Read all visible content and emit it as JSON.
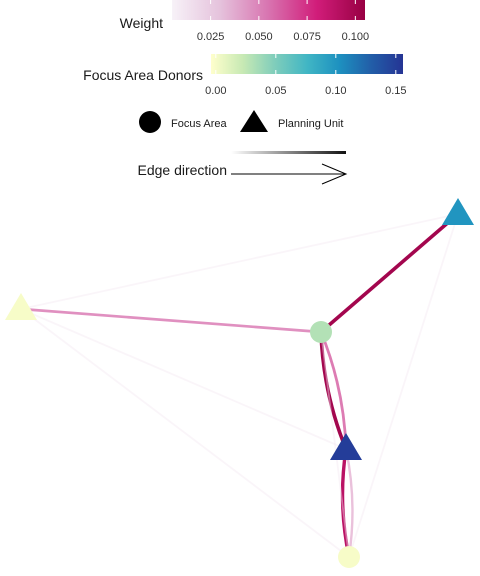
{
  "chart_data": {
    "type": "network",
    "legend": {
      "weight": {
        "title": "Weight",
        "ticks": [
          0.025,
          0.05,
          0.075,
          0.1
        ],
        "tick_labels": [
          "0.025",
          "0.050",
          "0.075",
          "0.100"
        ],
        "range": [
          0.005,
          0.105
        ],
        "colors": [
          "#f7f2f8",
          "#e5c2dc",
          "#d874b0",
          "#d11d7a",
          "#980043"
        ]
      },
      "donors": {
        "title": "Focus Area Donors",
        "ticks": [
          0,
          0.05,
          0.1,
          0.15
        ],
        "tick_labels": [
          "0.00",
          "0.05",
          "0.10",
          "0.15"
        ],
        "range": [
          -0.004,
          0.156
        ],
        "colors": [
          "#ffffcc",
          "#c7e9b4",
          "#7fcdbb",
          "#41b6c4",
          "#1d91c0",
          "#225ea8",
          "#253494"
        ]
      },
      "shape": {
        "items": [
          {
            "label": "Focus Area",
            "shape": "circle"
          },
          {
            "label": "Planning Unit",
            "shape": "triangle"
          }
        ]
      },
      "edge": {
        "title": "Edge direction"
      }
    },
    "nodes": [
      {
        "id": "planning-unit-top-right",
        "shape": "triangle",
        "donors": 0.1
      },
      {
        "id": "planning-unit-left",
        "shape": "triangle",
        "donors": 0.0
      },
      {
        "id": "focus-area-center",
        "shape": "circle",
        "donors": 0.03
      },
      {
        "id": "planning-unit-center",
        "shape": "triangle",
        "donors": 0.15
      },
      {
        "id": "focus-area-bottom",
        "shape": "circle",
        "donors": 0.0
      }
    ],
    "edges": [
      {
        "from": "planning-unit-top-right",
        "to": "planning-unit-left",
        "weight": 0.01
      },
      {
        "from": "planning-unit-top-right",
        "to": "focus-area-center",
        "weight": 0.1
      },
      {
        "from": "planning-unit-top-right",
        "to": "focus-area-bottom",
        "weight": 0.01
      },
      {
        "from": "planning-unit-left",
        "to": "focus-area-center",
        "weight": 0.055
      },
      {
        "from": "planning-unit-left",
        "to": "planning-unit-center",
        "weight": 0.01
      },
      {
        "from": "planning-unit-left",
        "to": "focus-area-bottom",
        "weight": 0.01
      },
      {
        "from": "focus-area-center",
        "to": "planning-unit-center",
        "weight": 0.1
      },
      {
        "from": "planning-unit-center",
        "to": "focus-area-center",
        "weight": 0.06
      },
      {
        "from": "planning-unit-center",
        "to": "focus-area-bottom",
        "weight": 0.09
      },
      {
        "from": "focus-area-bottom",
        "to": "planning-unit-center",
        "weight": 0.04
      },
      {
        "from": "focus-area-center",
        "to": "focus-area-bottom",
        "weight": 0.01
      }
    ]
  }
}
